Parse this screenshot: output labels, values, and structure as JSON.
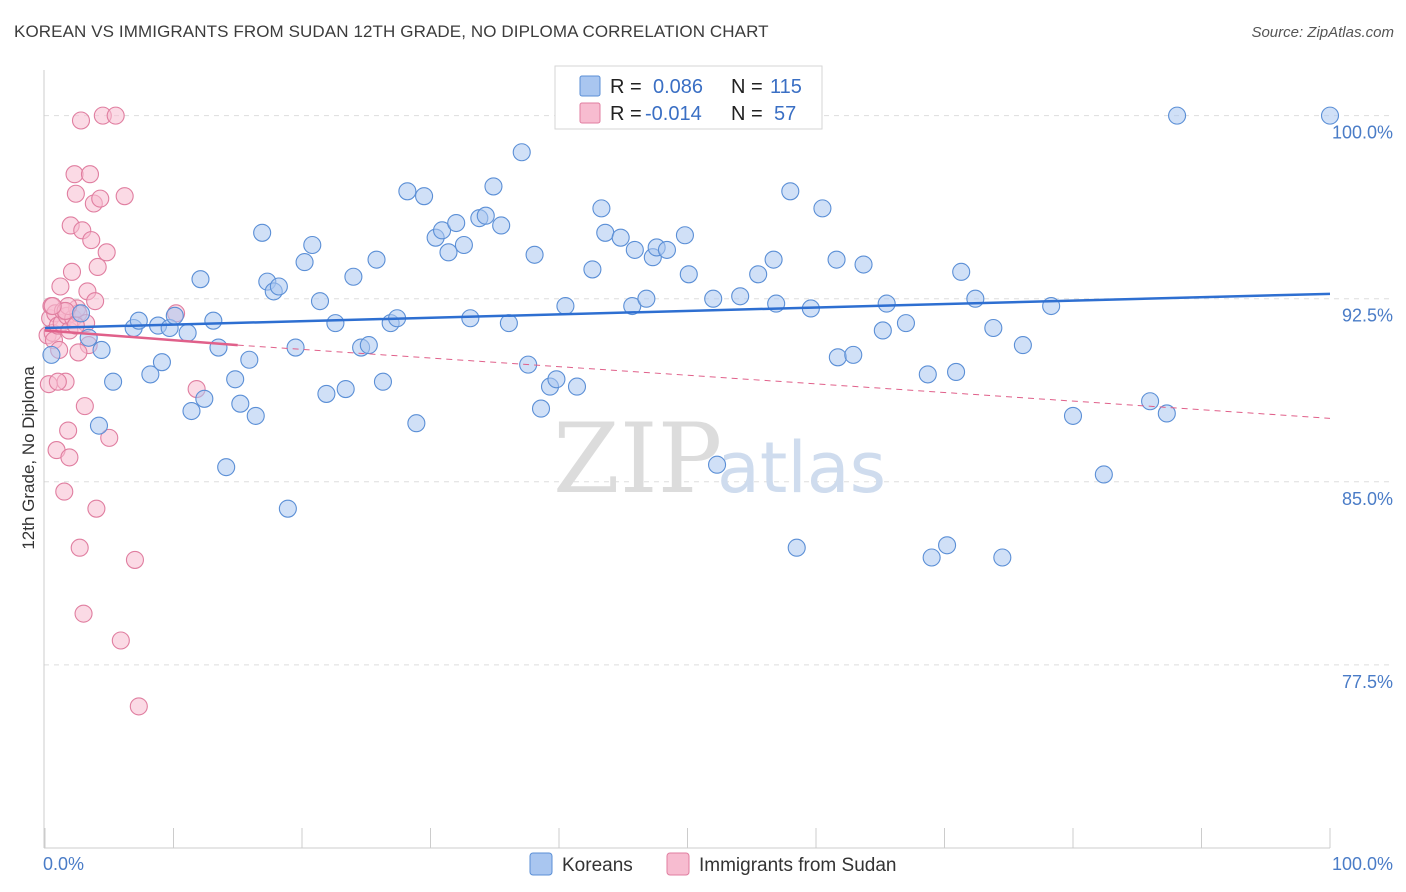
{
  "title": "KOREAN VS IMMIGRANTS FROM SUDAN 12TH GRADE, NO DIPLOMA CORRELATION CHART",
  "source": "Source: ZipAtlas.com",
  "watermark": {
    "zip": "ZIP",
    "atlas": "atlas"
  },
  "colors": {
    "koreans_fill": "#a9c6f0",
    "koreans_stroke": "#5b8fd6",
    "koreans_line": "#2e6fd1",
    "sudan_fill": "#f7bcd0",
    "sudan_stroke": "#e07ea0",
    "sudan_line": "#e0608a",
    "grid": "#dddddd",
    "tick_text": "#4a7cc7"
  },
  "legend_top": {
    "rows": [
      {
        "r_label": "R =",
        "r_value": "0.086",
        "n_label": "N =",
        "n_value": "115"
      },
      {
        "r_label": "R =",
        "r_value": "-0.014",
        "n_label": "N =",
        "n_value": "57"
      }
    ]
  },
  "legend_bottom": {
    "items": [
      "Koreans",
      "Immigrants from Sudan"
    ]
  },
  "chart_data": {
    "type": "scatter",
    "xlabel": "",
    "ylabel": "12th Grade, No Diploma",
    "xlim": [
      0,
      100
    ],
    "ylim": [
      70,
      101.5
    ],
    "x_tick_labels": [
      "0.0%",
      "100.0%"
    ],
    "y_ticks": [
      77.5,
      85.0,
      92.5,
      100.0
    ],
    "y_tick_labels": [
      "77.5%",
      "85.0%",
      "92.5%",
      "100.0%"
    ],
    "grid": true,
    "legend_position": "top-center",
    "series": [
      {
        "name": "Koreans",
        "trend": {
          "x": [
            0,
            100
          ],
          "y": [
            91.3,
            92.7
          ],
          "style": "solid"
        },
        "points": [
          [
            0.5,
            90.2
          ],
          [
            2.8,
            91.9
          ],
          [
            3.4,
            90.9
          ],
          [
            4.2,
            87.3
          ],
          [
            4.4,
            90.4
          ],
          [
            5.3,
            89.1
          ],
          [
            6.9,
            91.3
          ],
          [
            7.3,
            91.6
          ],
          [
            8.2,
            89.4
          ],
          [
            8.8,
            91.4
          ],
          [
            9.1,
            89.9
          ],
          [
            9.7,
            91.3
          ],
          [
            10.1,
            91.8
          ],
          [
            11.1,
            91.1
          ],
          [
            11.4,
            87.9
          ],
          [
            12.1,
            93.3
          ],
          [
            12.4,
            88.4
          ],
          [
            13.1,
            91.6
          ],
          [
            13.5,
            90.5
          ],
          [
            14.1,
            85.6
          ],
          [
            14.8,
            89.2
          ],
          [
            15.2,
            88.2
          ],
          [
            15.9,
            90.0
          ],
          [
            16.4,
            87.7
          ],
          [
            16.9,
            95.2
          ],
          [
            17.3,
            93.2
          ],
          [
            17.8,
            92.8
          ],
          [
            18.2,
            93.0
          ],
          [
            18.9,
            83.9
          ],
          [
            19.5,
            90.5
          ],
          [
            20.2,
            94.0
          ],
          [
            20.8,
            94.7
          ],
          [
            21.4,
            92.4
          ],
          [
            21.9,
            88.6
          ],
          [
            22.6,
            91.5
          ],
          [
            23.4,
            88.8
          ],
          [
            24.0,
            93.4
          ],
          [
            24.6,
            90.5
          ],
          [
            25.2,
            90.6
          ],
          [
            25.8,
            94.1
          ],
          [
            26.3,
            89.1
          ],
          [
            26.9,
            91.5
          ],
          [
            27.4,
            91.7
          ],
          [
            28.2,
            96.9
          ],
          [
            28.9,
            87.4
          ],
          [
            29.5,
            96.7
          ],
          [
            30.4,
            95.0
          ],
          [
            30.9,
            95.3
          ],
          [
            31.4,
            94.4
          ],
          [
            32.0,
            95.6
          ],
          [
            32.6,
            94.7
          ],
          [
            33.1,
            91.7
          ],
          [
            33.8,
            95.8
          ],
          [
            34.3,
            95.9
          ],
          [
            34.9,
            97.1
          ],
          [
            35.5,
            95.5
          ],
          [
            36.1,
            91.5
          ],
          [
            37.1,
            98.5
          ],
          [
            37.6,
            89.8
          ],
          [
            38.1,
            94.3
          ],
          [
            38.6,
            88.0
          ],
          [
            39.3,
            88.9
          ],
          [
            39.8,
            89.2
          ],
          [
            40.5,
            92.2
          ],
          [
            41.4,
            88.9
          ],
          [
            42.6,
            93.7
          ],
          [
            43.3,
            96.2
          ],
          [
            43.6,
            95.2
          ],
          [
            44.8,
            95.0
          ],
          [
            45.7,
            92.2
          ],
          [
            45.9,
            94.5
          ],
          [
            46.8,
            92.5
          ],
          [
            47.3,
            94.2
          ],
          [
            47.6,
            94.6
          ],
          [
            48.4,
            94.5
          ],
          [
            49.8,
            95.1
          ],
          [
            50.1,
            93.5
          ],
          [
            52.0,
            92.5
          ],
          [
            52.3,
            85.7
          ],
          [
            54.1,
            92.6
          ],
          [
            55.5,
            93.5
          ],
          [
            56.7,
            94.1
          ],
          [
            56.9,
            92.3
          ],
          [
            58.0,
            96.9
          ],
          [
            58.5,
            82.3
          ],
          [
            59.6,
            92.1
          ],
          [
            60.5,
            96.2
          ],
          [
            61.6,
            94.1
          ],
          [
            61.7,
            90.1
          ],
          [
            62.9,
            90.2
          ],
          [
            63.7,
            93.9
          ],
          [
            65.2,
            91.2
          ],
          [
            65.5,
            92.3
          ],
          [
            67.0,
            91.5
          ],
          [
            68.7,
            89.4
          ],
          [
            69.0,
            81.9
          ],
          [
            70.2,
            82.4
          ],
          [
            70.9,
            89.5
          ],
          [
            71.3,
            93.6
          ],
          [
            72.4,
            92.5
          ],
          [
            73.8,
            91.3
          ],
          [
            74.5,
            81.9
          ],
          [
            76.1,
            90.6
          ],
          [
            78.3,
            92.2
          ],
          [
            80.0,
            87.7
          ],
          [
            82.4,
            85.3
          ],
          [
            86.0,
            88.3
          ],
          [
            87.3,
            87.8
          ],
          [
            88.1,
            100.0
          ],
          [
            100.0,
            100.0
          ]
        ]
      },
      {
        "name": "Immigrants from Sudan",
        "trend": {
          "x": [
            0,
            15
          ],
          "y": [
            91.2,
            90.6
          ],
          "x_dashed": [
            15,
            100
          ],
          "y_dashed": [
            90.6,
            87.6
          ],
          "style": "solid-then-dashed"
        },
        "points": [
          [
            0.2,
            91.0
          ],
          [
            0.3,
            89.0
          ],
          [
            0.4,
            91.7
          ],
          [
            0.5,
            92.2
          ],
          [
            0.6,
            91.1
          ],
          [
            0.7,
            90.8
          ],
          [
            0.8,
            91.9
          ],
          [
            0.9,
            86.3
          ],
          [
            1.0,
            91.4
          ],
          [
            1.1,
            90.4
          ],
          [
            1.2,
            93.0
          ],
          [
            1.3,
            91.5
          ],
          [
            1.4,
            92.0
          ],
          [
            1.5,
            84.6
          ],
          [
            1.6,
            89.1
          ],
          [
            1.7,
            91.8
          ],
          [
            1.8,
            87.1
          ],
          [
            1.9,
            91.2
          ],
          [
            1.9,
            86.0
          ],
          [
            2.0,
            95.5
          ],
          [
            2.1,
            93.6
          ],
          [
            2.2,
            91.7
          ],
          [
            2.3,
            97.6
          ],
          [
            2.4,
            96.8
          ],
          [
            2.5,
            92.1
          ],
          [
            2.6,
            91.9
          ],
          [
            2.7,
            82.3
          ],
          [
            2.8,
            99.8
          ],
          [
            2.9,
            95.3
          ],
          [
            3.0,
            79.6
          ],
          [
            3.1,
            88.1
          ],
          [
            3.2,
            91.5
          ],
          [
            3.3,
            92.8
          ],
          [
            3.4,
            90.6
          ],
          [
            3.5,
            97.6
          ],
          [
            3.6,
            94.9
          ],
          [
            3.8,
            96.4
          ],
          [
            3.9,
            92.4
          ],
          [
            4.0,
            83.9
          ],
          [
            4.1,
            93.8
          ],
          [
            4.3,
            96.6
          ],
          [
            4.5,
            100.0
          ],
          [
            4.8,
            94.4
          ],
          [
            5.0,
            86.8
          ],
          [
            5.5,
            100.0
          ],
          [
            5.9,
            78.5
          ],
          [
            6.2,
            96.7
          ],
          [
            7.0,
            81.8
          ],
          [
            7.3,
            75.8
          ],
          [
            10.2,
            91.9
          ],
          [
            11.8,
            88.8
          ],
          [
            1.0,
            89.1
          ],
          [
            1.8,
            92.2
          ],
          [
            2.4,
            91.4
          ],
          [
            2.6,
            90.3
          ],
          [
            1.6,
            92.0
          ],
          [
            0.6,
            92.2
          ]
        ]
      }
    ]
  }
}
